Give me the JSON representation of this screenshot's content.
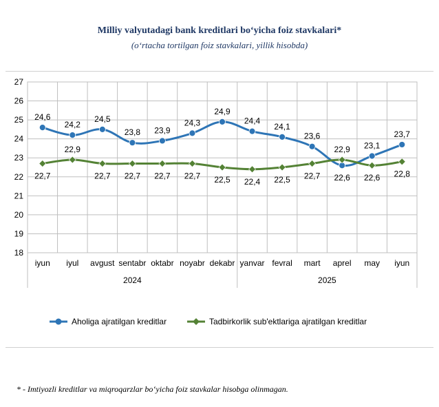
{
  "header": {
    "title": "Milliy valyutadagi bank kreditlari bo‘yicha foiz stavkalari*",
    "subtitle": "(o‘rtacha tortilgan foiz stavkalari, yillik hisobda)"
  },
  "footnote": "* - Imtiyozli kreditlar va miqroqarzlar bo‘yicha foiz stavkalar hisobga olinmagan.",
  "chart_data": {
    "type": "line",
    "categories": [
      "iyun",
      "iyul",
      "avgust",
      "sentabr",
      "oktabr",
      "noyabr",
      "dekabr",
      "yanvar",
      "fevral",
      "mart",
      "aprel",
      "may",
      "iyun"
    ],
    "year_groups": [
      {
        "label": "2024",
        "from": 0,
        "to": 6
      },
      {
        "label": "2025",
        "from": 7,
        "to": 12
      }
    ],
    "ylim": [
      18,
      27
    ],
    "yticks": [
      18,
      19,
      20,
      21,
      22,
      23,
      24,
      25,
      26,
      27
    ],
    "grid": true,
    "legend_position": "bottom",
    "series": [
      {
        "name": "Aholiga ajratilgan kreditlar",
        "color": "#2e75b6",
        "marker": "circle",
        "values": [
          24.6,
          24.2,
          24.5,
          23.8,
          23.9,
          24.3,
          24.9,
          24.4,
          24.1,
          23.6,
          22.6,
          23.1,
          23.7
        ],
        "labels": [
          "24,6",
          "24,2",
          "24,5",
          "23,8",
          "23,9",
          "24,3",
          "24,9",
          "24,4",
          "24,1",
          "23,6",
          "22,6",
          "23,1",
          "23,7"
        ]
      },
      {
        "name": "Tadbirkorlik sub'ektlariga ajratilgan kreditlar",
        "color": "#548235",
        "marker": "diamond",
        "values": [
          22.7,
          22.9,
          22.7,
          22.7,
          22.7,
          22.7,
          22.5,
          22.4,
          22.5,
          22.7,
          22.9,
          22.6,
          22.8
        ],
        "labels": [
          "22,7",
          "22,9",
          "22,7",
          "22,7",
          "22,7",
          "22,7",
          "22,5",
          "22,4",
          "22,5",
          "22,7",
          "22,9",
          "22,6",
          "22,8"
        ]
      }
    ]
  }
}
